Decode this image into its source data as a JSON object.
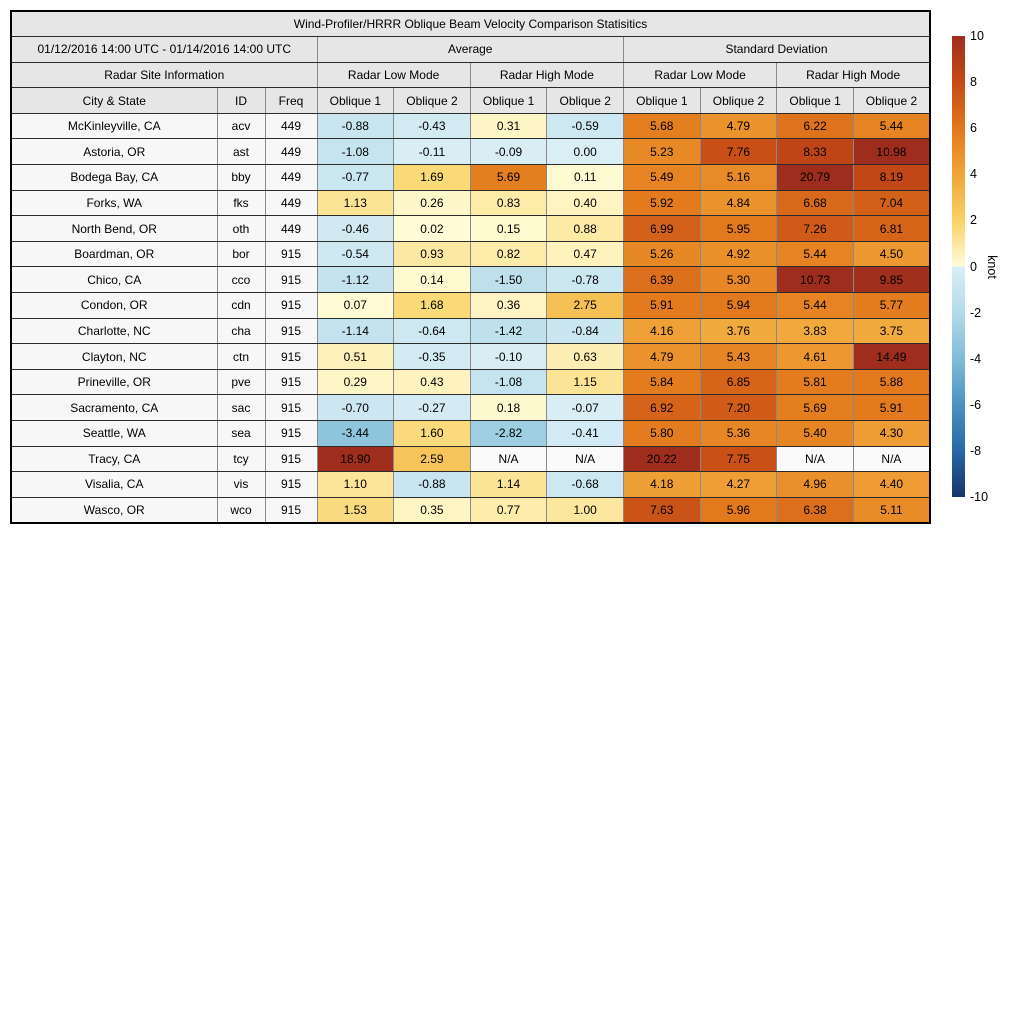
{
  "chart_data": {
    "type": "table",
    "title": "Wind-Profiler/HRRR Oblique Beam Velocity Comparison Statisitics",
    "date_range": "01/12/2016 14:00 UTC - 01/14/2016 14:00 UTC",
    "group_headers": {
      "average": "Average",
      "std": "Standard Deviation"
    },
    "site_info_header": "Radar Site Information",
    "mode_headers": {
      "low": "Radar Low Mode",
      "high": "Radar High Mode"
    },
    "column_headers": {
      "city": "City & State",
      "id": "ID",
      "freq": "Freq",
      "oblique1": "Oblique 1",
      "oblique2": "Oblique 2"
    },
    "value_columns": [
      "avg_low_oblique1",
      "avg_low_oblique2",
      "avg_high_oblique1",
      "avg_high_oblique2",
      "std_low_oblique1",
      "std_low_oblique2",
      "std_high_oblique1",
      "std_high_oblique2"
    ],
    "na_text": "N/A",
    "rows": [
      {
        "city": "McKinleyville, CA",
        "id": "acv",
        "freq": "449",
        "values": [
          -0.88,
          -0.43,
          0.31,
          -0.59,
          5.68,
          4.79,
          6.22,
          5.44
        ]
      },
      {
        "city": "Astoria, OR",
        "id": "ast",
        "freq": "449",
        "values": [
          -1.08,
          -0.11,
          -0.09,
          0.0,
          5.23,
          7.76,
          8.33,
          10.98
        ]
      },
      {
        "city": "Bodega Bay, CA",
        "id": "bby",
        "freq": "449",
        "values": [
          -0.77,
          1.69,
          5.69,
          0.11,
          5.49,
          5.16,
          20.79,
          8.19
        ]
      },
      {
        "city": "Forks, WA",
        "id": "fks",
        "freq": "449",
        "values": [
          1.13,
          0.26,
          0.83,
          0.4,
          5.92,
          4.84,
          6.68,
          7.04
        ]
      },
      {
        "city": "North Bend, OR",
        "id": "oth",
        "freq": "449",
        "values": [
          -0.46,
          0.02,
          0.15,
          0.88,
          6.99,
          5.95,
          7.26,
          6.81
        ]
      },
      {
        "city": "Boardman, OR",
        "id": "bor",
        "freq": "915",
        "values": [
          -0.54,
          0.93,
          0.82,
          0.47,
          5.26,
          4.92,
          5.44,
          4.5
        ]
      },
      {
        "city": "Chico, CA",
        "id": "cco",
        "freq": "915",
        "values": [
          -1.12,
          0.14,
          -1.5,
          -0.78,
          6.39,
          5.3,
          10.73,
          9.85
        ]
      },
      {
        "city": "Condon, OR",
        "id": "cdn",
        "freq": "915",
        "values": [
          0.07,
          1.68,
          0.36,
          2.75,
          5.91,
          5.94,
          5.44,
          5.77
        ]
      },
      {
        "city": "Charlotte, NC",
        "id": "cha",
        "freq": "915",
        "values": [
          -1.14,
          -0.64,
          -1.42,
          -0.84,
          4.16,
          3.76,
          3.83,
          3.75
        ]
      },
      {
        "city": "Clayton, NC",
        "id": "ctn",
        "freq": "915",
        "values": [
          0.51,
          -0.35,
          -0.1,
          0.63,
          4.79,
          5.43,
          4.61,
          14.49
        ]
      },
      {
        "city": "Prineville, OR",
        "id": "pve",
        "freq": "915",
        "values": [
          0.29,
          0.43,
          -1.08,
          1.15,
          5.84,
          6.85,
          5.81,
          5.88
        ]
      },
      {
        "city": "Sacramento, CA",
        "id": "sac",
        "freq": "915",
        "values": [
          -0.7,
          -0.27,
          0.18,
          -0.07,
          6.92,
          7.2,
          5.69,
          5.91
        ]
      },
      {
        "city": "Seattle, WA",
        "id": "sea",
        "freq": "915",
        "values": [
          -3.44,
          1.6,
          -2.82,
          -0.41,
          5.8,
          5.36,
          5.4,
          4.3
        ]
      },
      {
        "city": "Tracy, CA",
        "id": "tcy",
        "freq": "915",
        "values": [
          18.9,
          2.59,
          "N/A",
          "N/A",
          20.22,
          7.75,
          "N/A",
          "N/A"
        ]
      },
      {
        "city": "Visalia, CA",
        "id": "vis",
        "freq": "915",
        "values": [
          1.1,
          -0.88,
          1.14,
          -0.68,
          4.18,
          4.27,
          4.96,
          4.4
        ]
      },
      {
        "city": "Wasco, OR",
        "id": "wco",
        "freq": "915",
        "values": [
          1.53,
          0.35,
          0.77,
          1.0,
          7.63,
          5.96,
          6.38,
          5.11
        ]
      }
    ],
    "colorbar": {
      "label": "knot",
      "vmin": -10,
      "vmax": 10,
      "ticks": [
        10,
        8,
        6,
        4,
        2,
        0,
        -2,
        -4,
        -6,
        -8,
        -10
      ],
      "stops_positive": [
        {
          "v": 0,
          "color": "#fffcd8"
        },
        {
          "v": 2,
          "color": "#f9d265"
        },
        {
          "v": 4,
          "color": "#f0a438"
        },
        {
          "v": 6,
          "color": "#e2781c"
        },
        {
          "v": 8,
          "color": "#c54a16"
        },
        {
          "v": 10,
          "color": "#9e2d1e"
        }
      ],
      "stops_negative": [
        {
          "v": 0,
          "color": "#daeef5"
        },
        {
          "v": -2,
          "color": "#b3dbe9"
        },
        {
          "v": -4,
          "color": "#7fbcd7"
        },
        {
          "v": -6,
          "color": "#4b92c3"
        },
        {
          "v": -8,
          "color": "#2867a8"
        },
        {
          "v": -10,
          "color": "#15356b"
        }
      ]
    }
  }
}
